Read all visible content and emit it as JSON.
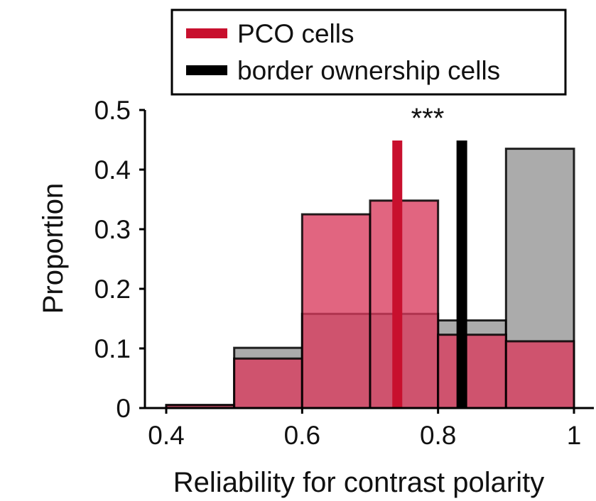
{
  "chart_data": {
    "type": "bar",
    "xlabel": "Reliability for contrast polarity",
    "ylabel": "Proportion",
    "xlim": [
      0.4,
      1.0
    ],
    "ylim": [
      0,
      0.5
    ],
    "x_ticks": [
      "0.4",
      "0.6",
      "0.8",
      "1"
    ],
    "y_ticks": [
      "0",
      "0.1",
      "0.2",
      "0.3",
      "0.4",
      "0.5"
    ],
    "bin_edges": [
      0.4,
      0.5,
      0.6,
      0.7,
      0.8,
      0.9,
      1.0
    ],
    "series": [
      {
        "name": "PCO cells",
        "color": "#c8102e",
        "values": [
          0.005,
          0.083,
          0.325,
          0.348,
          0.123,
          0.112
        ],
        "median": 0.74
      },
      {
        "name": "border ownership cells",
        "color": "#000000",
        "values": [
          0.005,
          0.101,
          0.158,
          0.158,
          0.147,
          0.435
        ],
        "median": 0.835
      }
    ],
    "annotation": "***",
    "legend_position": "top"
  }
}
